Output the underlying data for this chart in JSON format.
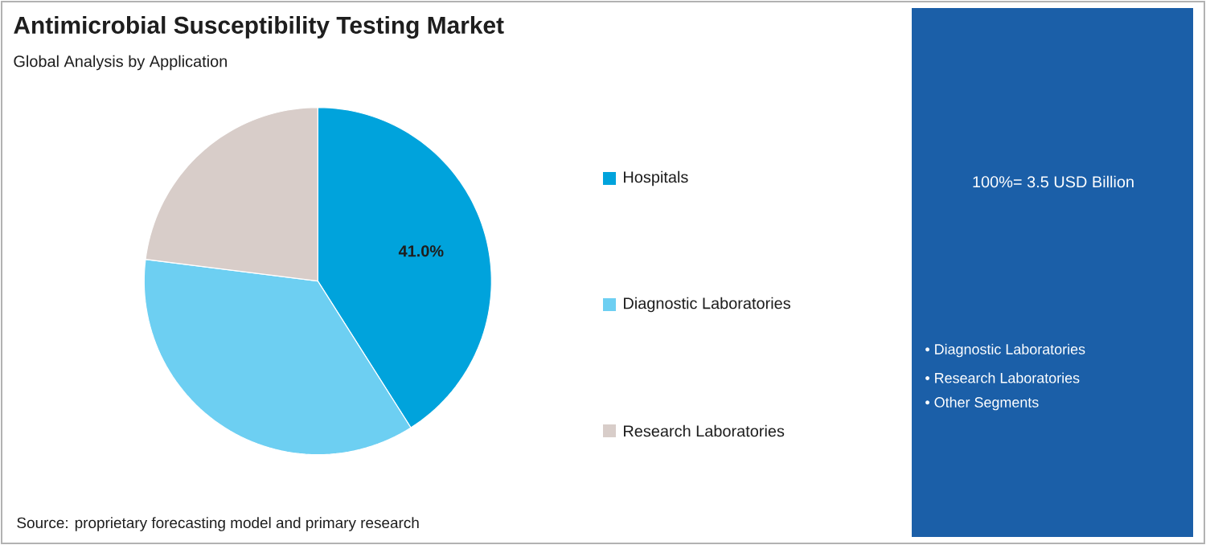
{
  "chart_data": {
    "type": "pie",
    "title": "Antimicrobial Susceptibility Testing Market",
    "subtitle": "Global Analysis by Application",
    "categories": [
      "Hospitals",
      "Diagnostic Laboratories",
      "Research Laboratories"
    ],
    "values": [
      41,
      36,
      23
    ],
    "colors": [
      "#00a3dc",
      "#6dcff2",
      "#d8cdc9"
    ],
    "value_labels": [
      "41.0%",
      null,
      null
    ],
    "legend": "right",
    "annotations": [
      "100%= 3.5 USD Billion",
      "• Diagnostic Laboratories",
      "• Research Laboratories",
      "• Other Segments",
      "Source: proprietary forecasting model and primary research"
    ]
  }
}
